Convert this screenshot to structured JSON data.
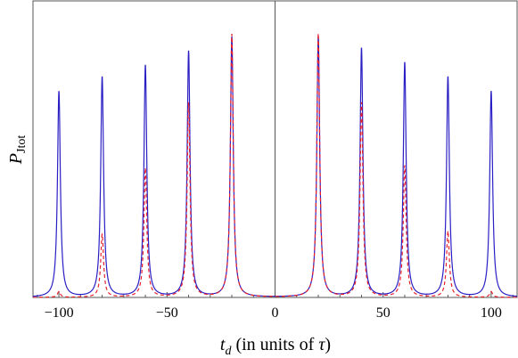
{
  "chart_data": {
    "type": "line",
    "title": "",
    "xlabel": "t_d (in units of τ)",
    "xlabel_main": "t",
    "xlabel_sub": "d",
    "xlabel_rest": " (in units of ",
    "xlabel_tau": "τ",
    "xlabel_close": ")",
    "ylabel": "P_Jtot",
    "ylabel_main": "P",
    "ylabel_sub": "Jtot",
    "xlim": [
      -112,
      112
    ],
    "ylim": [
      0,
      1.0
    ],
    "xticks": [
      -100,
      -50,
      0,
      50,
      100
    ],
    "xtick_labels": [
      "−100",
      "−50",
      "0",
      "50",
      "100"
    ],
    "grid": false,
    "legend": "none",
    "peak_width": 0.8,
    "series": [
      {
        "style": "solid",
        "color": "#2a1fc4",
        "peaks": [
          {
            "x": -100,
            "y": 0.72
          },
          {
            "x": -80,
            "y": 0.77
          },
          {
            "x": -60,
            "y": 0.81
          },
          {
            "x": -40,
            "y": 0.86
          },
          {
            "x": -20,
            "y": 0.91
          },
          {
            "x": 20,
            "y": 0.91
          },
          {
            "x": 40,
            "y": 0.87
          },
          {
            "x": 60,
            "y": 0.82
          },
          {
            "x": 80,
            "y": 0.77
          },
          {
            "x": 100,
            "y": 0.72
          }
        ]
      },
      {
        "style": "dashed",
        "color": "#e8202a",
        "peaks": [
          {
            "x": -100,
            "y": 0.02
          },
          {
            "x": -80,
            "y": 0.22
          },
          {
            "x": -60,
            "y": 0.45
          },
          {
            "x": -40,
            "y": 0.68
          },
          {
            "x": -20,
            "y": 0.92
          },
          {
            "x": 20,
            "y": 0.92
          },
          {
            "x": 40,
            "y": 0.68
          },
          {
            "x": 60,
            "y": 0.46
          },
          {
            "x": 80,
            "y": 0.23
          },
          {
            "x": 100,
            "y": 0.02
          }
        ]
      }
    ]
  }
}
